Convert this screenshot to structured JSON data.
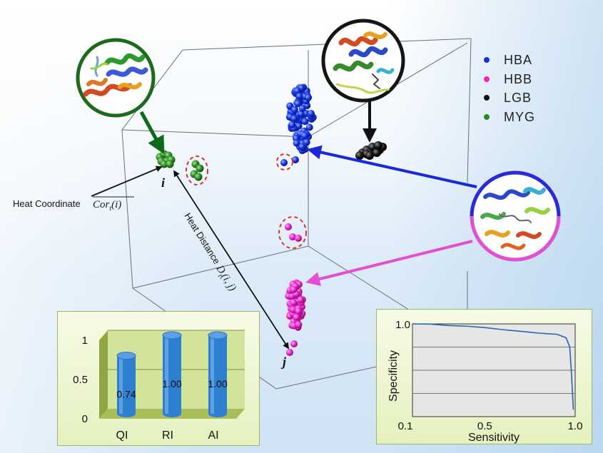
{
  "legend": [
    {
      "label": "HBA",
      "color": "#1030e8"
    },
    {
      "label": "HBB",
      "color": "#ee22cc"
    },
    {
      "label": "LGB",
      "color": "#111111"
    },
    {
      "label": "MYG",
      "color": "#2a8a22"
    }
  ],
  "annotations": {
    "point_i": "i",
    "point_j": "j",
    "heat_coordinate_prefix": "Heat Coordinate",
    "heat_coordinate_formula": "Cor",
    "heat_coordinate_sub": "t",
    "heat_coordinate_arg": "(i)",
    "heat_distance_prefix": "Heat Distance",
    "heat_distance_formula": "D",
    "heat_distance_sub": "t",
    "heat_distance_arg": "(i, j)"
  },
  "icons": [
    "protein-structure-myg-icon",
    "protein-structure-lgb-icon",
    "protein-structure-hemoglobin-icon"
  ],
  "chart_data": [
    {
      "type": "bar",
      "categories": [
        "QI",
        "RI",
        "AI"
      ],
      "values": [
        0.74,
        1.0,
        1.0
      ],
      "value_labels": [
        "0.74",
        "1.00",
        "1.00"
      ],
      "yticks": [
        "0",
        "0.5",
        "1"
      ],
      "ylim": [
        0,
        1
      ],
      "bar_color": "#2e7fd0"
    },
    {
      "type": "line",
      "xlabel": "Sensitivity",
      "ylabel": "Specificity",
      "xticks": [
        "0.1",
        "0.5",
        "1.0"
      ],
      "yticks": [
        "1.0"
      ],
      "xlim": [
        0.1,
        1.0
      ],
      "ylim": [
        0.6,
        1.0
      ],
      "x": [
        0.1,
        0.2,
        0.3,
        0.4,
        0.5,
        0.6,
        0.7,
        0.8,
        0.9,
        0.95,
        0.97,
        0.98,
        0.99
      ],
      "y": [
        1.0,
        0.999,
        0.993,
        0.99,
        0.984,
        0.975,
        0.968,
        0.96,
        0.955,
        0.94,
        0.9,
        0.78,
        0.63
      ],
      "grid": true,
      "line_color": "#2a64a8"
    }
  ]
}
